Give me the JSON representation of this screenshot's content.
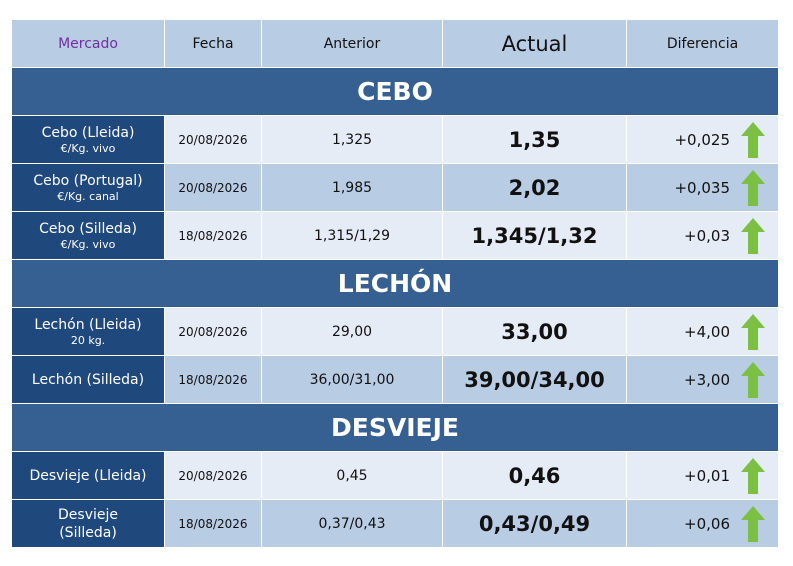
{
  "header": [
    "Mercado",
    "Fecha",
    "Anterior",
    "Actual",
    "Diferencia"
  ],
  "sections": [
    {
      "title": "CEBO",
      "rows": [
        {
          "market": [
            "Cebo (Lleida)"
          ],
          "unit": "€/Kg. vivo",
          "fecha": "20/08/2026",
          "anterior": "1,325",
          "actual": "1,35",
          "diferencia": "+0,025"
        },
        {
          "market": [
            "Cebo (Portugal)"
          ],
          "unit": "€/Kg. canal",
          "fecha": "20/08/2026",
          "anterior": "1,985",
          "actual": "2,02",
          "diferencia": "+0,035"
        },
        {
          "market": [
            "Cebo (Silleda)"
          ],
          "unit": "€/Kg. vivo",
          "fecha": "18/08/2026",
          "anterior": "1,315/1,29",
          "actual": "1,345/1,32",
          "diferencia": "+0,03"
        }
      ]
    },
    {
      "title": "LECHÓN",
      "rows": [
        {
          "market": [
            "Lechón (Lleida)"
          ],
          "unit": "20 kg.",
          "fecha": "20/08/2026",
          "anterior": "29,00",
          "actual": "33,00",
          "diferencia": "+4,00"
        },
        {
          "market": [
            "Lechón (Silleda)"
          ],
          "fecha": "18/08/2026",
          "anterior": "36,00/31,00",
          "actual": "39,00/34,00",
          "diferencia": "+3,00"
        }
      ]
    },
    {
      "title": "DESVIEJE",
      "rows": [
        {
          "market": [
            "Desvieje (Lleida)"
          ],
          "fecha": "20/08/2026",
          "anterior": "0,45",
          "actual": "0,46",
          "diferencia": "+0,01"
        },
        {
          "market": [
            "Desvieje",
            "(Silleda)"
          ],
          "fecha": "18/08/2026",
          "anterior": "0,37/0,43",
          "actual": "0,43/0,49",
          "diferencia": "+0,06"
        }
      ]
    }
  ]
}
